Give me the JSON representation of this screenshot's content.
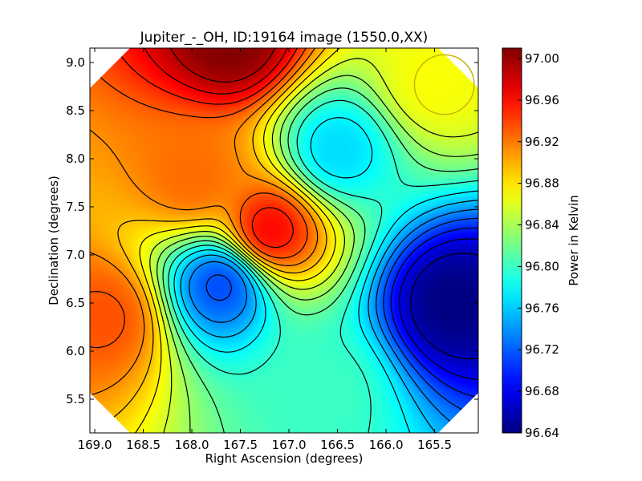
{
  "chart_data": {
    "type": "heatmap",
    "title": "Jupiter_-_OH, ID:19164 image (1550.0,XX)",
    "xlabel": "Right Ascension (degrees)",
    "ylabel": "Declination (degrees)",
    "xlim": [
      169.05,
      165.05
    ],
    "ylim": [
      5.15,
      9.15
    ],
    "x_ticks": [
      "169.0",
      "168.5",
      "168.0",
      "167.5",
      "167.0",
      "166.5",
      "166.0",
      "165.5"
    ],
    "y_ticks": [
      "5.5",
      "6.0",
      "6.5",
      "7.0",
      "7.5",
      "8.0",
      "8.5",
      "9.0"
    ],
    "colorbar": {
      "label": "Power in Kelvin",
      "range": [
        96.64,
        97.01
      ],
      "ticks": [
        "96.64",
        "96.68",
        "96.72",
        "96.76",
        "96.80",
        "96.84",
        "96.88",
        "96.92",
        "96.96",
        "97.00"
      ],
      "colormap": "jet"
    },
    "base_value": 96.9,
    "features": [
      {
        "ra": 167.6,
        "dec": 9.25,
        "value": 97.01
      },
      {
        "ra": 167.2,
        "dec": 7.25,
        "value": 96.965
      },
      {
        "ra": 168.9,
        "dec": 6.35,
        "value": 96.935
      },
      {
        "ra": 168.0,
        "dec": 7.8,
        "value": 96.925
      },
      {
        "ra": 167.7,
        "dec": 6.7,
        "value": 96.71
      },
      {
        "ra": 166.5,
        "dec": 8.1,
        "value": 96.765
      },
      {
        "ra": 165.3,
        "dec": 6.5,
        "value": 96.64
      },
      {
        "ra": 165.5,
        "dec": 8.8,
        "value": 96.87
      },
      {
        "ra": 166.6,
        "dec": 5.6,
        "value": 96.8
      }
    ],
    "beam_marker": {
      "ra": 165.4,
      "dec": 8.77,
      "radius_deg": 0.31,
      "color": "#c8b400"
    },
    "contour_levels": 18
  }
}
